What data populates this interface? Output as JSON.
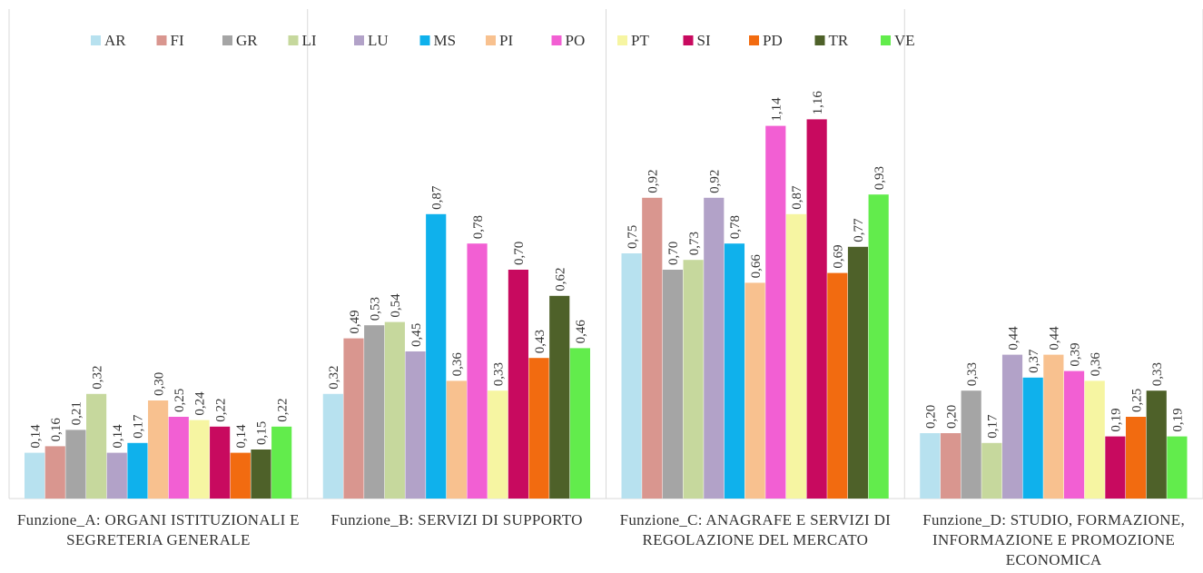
{
  "chart_data": {
    "type": "bar",
    "categories": [
      "Funzione_A: ORGANI ISTITUZIONALI E SEGRETERIA GENERALE",
      "Funzione_B: SERVIZI DI SUPPORTO",
      "Funzione_C: ANAGRAFE E SERVIZI DI REGOLAZIONE DEL MERCATO",
      "Funzione_D: STUDIO, FORMAZIONE, INFORMAZIONE E PROMOZIONE ECONOMICA"
    ],
    "ylim": [
      0,
      1.3
    ],
    "series": [
      {
        "name": "AR",
        "color": "#b7e1ef",
        "values": [
          0.14,
          0.32,
          0.75,
          0.2
        ],
        "value_labels": [
          "0,14",
          "0,32",
          "0,75",
          "0,20"
        ]
      },
      {
        "name": "FI",
        "color": "#d9968f",
        "values": [
          0.16,
          0.49,
          0.92,
          0.2
        ],
        "value_labels": [
          "0,16",
          "0,49",
          "0,92",
          "0,20"
        ]
      },
      {
        "name": "GR",
        "color": "#a5a5a5",
        "values": [
          0.21,
          0.53,
          0.7,
          0.33
        ],
        "value_labels": [
          "0,21",
          "0,53",
          "0,70",
          "0,33"
        ]
      },
      {
        "name": "LI",
        "color": "#c6d89d",
        "values": [
          0.32,
          0.54,
          0.73,
          0.17
        ],
        "value_labels": [
          "0,32",
          "0,54",
          "0,73",
          "0,17"
        ]
      },
      {
        "name": "LU",
        "color": "#b2a2c8",
        "values": [
          0.14,
          0.45,
          0.92,
          0.44
        ],
        "value_labels": [
          "0,14",
          "0,45",
          "0,92",
          "0,44"
        ]
      },
      {
        "name": "MS",
        "color": "#0fb1ec",
        "values": [
          0.17,
          0.87,
          0.78,
          0.37
        ],
        "value_labels": [
          "0,17",
          "0,87",
          "0,78",
          "0,37"
        ]
      },
      {
        "name": "PI",
        "color": "#f8c18f",
        "values": [
          0.3,
          0.36,
          0.66,
          0.44
        ],
        "value_labels": [
          "0,30",
          "0,36",
          "0,66",
          "0,44"
        ]
      },
      {
        "name": "PO",
        "color": "#f25fd3",
        "values": [
          0.25,
          0.78,
          1.14,
          0.39
        ],
        "value_labels": [
          "0,25",
          "0,78",
          "1,14",
          "0,39"
        ]
      },
      {
        "name": "PT",
        "color": "#f6f5a2",
        "values": [
          0.24,
          0.33,
          0.87,
          0.36
        ],
        "value_labels": [
          "0,24",
          "0,33",
          "0,87",
          "0,36"
        ]
      },
      {
        "name": "SI",
        "color": "#c80a5f",
        "values": [
          0.22,
          0.7,
          1.16,
          0.19
        ],
        "value_labels": [
          "0,22",
          "0,70",
          "1,16",
          "0,19"
        ]
      },
      {
        "name": "PD",
        "color": "#f26b10",
        "values": [
          0.14,
          0.43,
          0.69,
          0.25
        ],
        "value_labels": [
          "0,14",
          "0,43",
          "0,69",
          "0,25"
        ]
      },
      {
        "name": "TR",
        "color": "#4e6129",
        "values": [
          0.15,
          0.62,
          0.77,
          0.33
        ],
        "value_labels": [
          "0,15",
          "0,62",
          "0,77",
          "0,33"
        ]
      },
      {
        "name": "VE",
        "color": "#62ec4c",
        "values": [
          0.22,
          0.46,
          0.93,
          0.19
        ],
        "value_labels": [
          "0,22",
          "0,46",
          "0,93",
          "0,19"
        ]
      }
    ]
  }
}
